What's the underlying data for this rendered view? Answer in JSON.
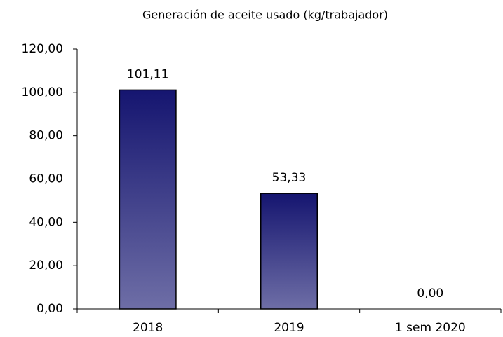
{
  "chart_data": {
    "type": "bar",
    "title": "Generación de aceite usado (kg/trabajador)",
    "categories": [
      "2018",
      "2019",
      "1 sem 2020"
    ],
    "values": [
      101.11,
      53.33,
      0
    ],
    "value_labels": [
      "101,11",
      "53,33",
      "0,00"
    ],
    "color": "#1c1c78",
    "ylim": [
      0,
      120
    ],
    "yticks": [
      {
        "value": 0,
        "label": "0,00"
      },
      {
        "value": 20,
        "label": "20,00"
      },
      {
        "value": 40,
        "label": "40,00"
      },
      {
        "value": 60,
        "label": "60,00"
      },
      {
        "value": 80,
        "label": "80,00"
      },
      {
        "value": 100,
        "label": "100,00"
      },
      {
        "value": 120,
        "label": "120,00"
      }
    ],
    "grid": false
  }
}
